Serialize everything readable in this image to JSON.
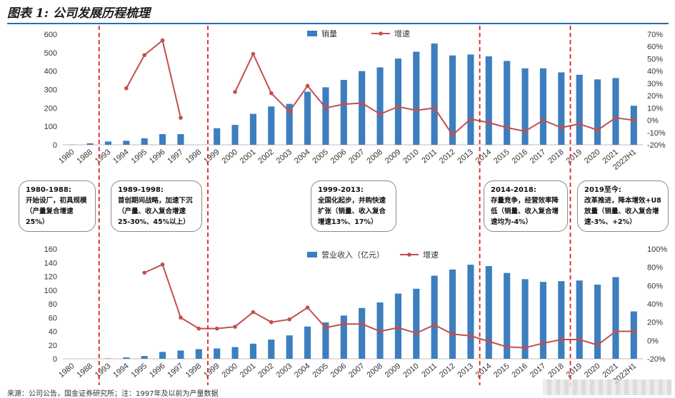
{
  "title": "图表 1: 公司发展历程梳理",
  "footer": "来源：公司公告，国金证券研究所；注：1997年及以前为产量数据",
  "chart_data": [
    {
      "type": "bar",
      "categories": [
        "1980",
        "1988",
        "1993",
        "1994",
        "1995",
        "1996",
        "1997",
        "1998",
        "1999",
        "2000",
        "2001",
        "2002",
        "2003",
        "2004",
        "2005",
        "2006",
        "2007",
        "2008",
        "2009",
        "2010",
        "2011",
        "2012",
        "2013",
        "2014",
        "2015",
        "2016",
        "2017",
        "2018",
        "2019",
        "2020",
        "2021",
        "2022H1"
      ],
      "series": [
        {
          "name": "销量",
          "type": "bar",
          "axis": "left",
          "color": "#3d7ebf",
          "values": [
            1,
            8,
            18,
            22,
            35,
            58,
            58,
            null,
            90,
            108,
            168,
            208,
            222,
            288,
            312,
            352,
            400,
            420,
            468,
            505,
            550,
            485,
            490,
            480,
            455,
            415,
            415,
            393,
            380,
            355,
            362,
            212
          ]
        },
        {
          "name": "增速",
          "type": "line",
          "axis": "right",
          "color": "#c0504d",
          "values": [
            null,
            null,
            null,
            0.26,
            0.53,
            0.65,
            0.02,
            null,
            null,
            0.23,
            0.54,
            0.22,
            0.07,
            0.28,
            0.1,
            0.13,
            0.14,
            0.05,
            0.11,
            0.08,
            0.1,
            -0.12,
            0.01,
            -0.02,
            -0.06,
            -0.09,
            0.0,
            -0.06,
            -0.03,
            -0.08,
            0.02,
            0.0
          ]
        }
      ],
      "ylim": [
        0,
        600
      ],
      "yticks": [
        "0",
        "100",
        "200",
        "300",
        "400",
        "500",
        "600"
      ],
      "y2lim": [
        -0.2,
        0.7
      ],
      "y2ticks": [
        "-20%",
        "-10%",
        "0%",
        "10%",
        "20%",
        "30%",
        "40%",
        "50%",
        "60%",
        "70%"
      ],
      "legend": "top-center",
      "grid": false,
      "dividers_after": [
        "1988",
        "1998",
        "2013",
        "2018"
      ]
    },
    {
      "type": "bar",
      "categories": [
        "1980",
        "1988",
        "1993",
        "1994",
        "1995",
        "1996",
        "1997",
        "1998",
        "1999",
        "2000",
        "2001",
        "2002",
        "2003",
        "2004",
        "2005",
        "2006",
        "2007",
        "2008",
        "2009",
        "2010",
        "2011",
        "2012",
        "2013",
        "2014",
        "2015",
        "2016",
        "2017",
        "2018",
        "2019",
        "2020",
        "2021",
        "2022H1"
      ],
      "x_tick_labels": [
        "1980",
        "1988",
        "1993",
        "1994",
        "1995",
        "1996",
        "1997",
        "1998",
        "1999",
        "2000",
        "2001",
        "2002",
        "2003",
        "2004",
        "2005",
        "2006",
        "2007",
        "2008",
        "2009",
        "2010",
        "2011",
        "2012",
        "2013",
        "2014",
        "2015",
        "2016",
        "2017",
        "2018",
        "2019",
        "2020",
        "2021",
        "2022H1"
      ],
      "series": [
        {
          "name": "营业收入（亿元）",
          "type": "bar",
          "axis": "left",
          "color": "#3d7ebf",
          "values": [
            0,
            0,
            0.5,
            2,
            4,
            10,
            12,
            14,
            15,
            17,
            22,
            28,
            34,
            47,
            53,
            63,
            74,
            82,
            95,
            102,
            121,
            130,
            137,
            135,
            125,
            116,
            112,
            113,
            114,
            108,
            119,
            69
          ]
        },
        {
          "name": "增速",
          "type": "line",
          "axis": "right",
          "color": "#c0504d",
          "values": [
            null,
            null,
            null,
            null,
            0.74,
            0.83,
            0.25,
            0.13,
            0.13,
            0.15,
            0.31,
            0.2,
            0.23,
            0.36,
            0.14,
            0.18,
            0.18,
            0.1,
            0.14,
            0.08,
            0.17,
            0.07,
            0.05,
            -0.01,
            -0.07,
            -0.08,
            -0.03,
            0.01,
            0.01,
            -0.05,
            0.1,
            0.1
          ]
        }
      ],
      "ylim": [
        0,
        160
      ],
      "yticks": [
        "0",
        "20",
        "40",
        "60",
        "80",
        "100",
        "120",
        "140",
        "160"
      ],
      "y2lim": [
        -0.2,
        1.0
      ],
      "y2ticks": [
        "-20%",
        "0%",
        "20%",
        "40%",
        "60%",
        "80%",
        "100%"
      ],
      "legend": "top-center",
      "grid": false,
      "dividers_after": [
        "1988",
        "1998",
        "2013",
        "2018"
      ]
    }
  ],
  "stages": [
    {
      "period": "1980-1988:",
      "desc": "开始设厂，初具规模（产量复合增速25%）"
    },
    {
      "period": "1989-1998:",
      "desc": "首创期间战略，加速下沉（产量、收入复合增速25-30%、45%以上）"
    },
    {
      "period": "1999-2013:",
      "desc": "全国化起步，并购快速扩张（销量、收入复合增速13%、17%）"
    },
    {
      "period": "2014-2018:",
      "desc": "存量竞争，经营效率降低（销量、收入复合增速均为-4%）"
    },
    {
      "period": "2019至今:",
      "desc": "改革推进，降本增效+U8放量（销量、收入复合增速-3%、+2%）"
    }
  ]
}
